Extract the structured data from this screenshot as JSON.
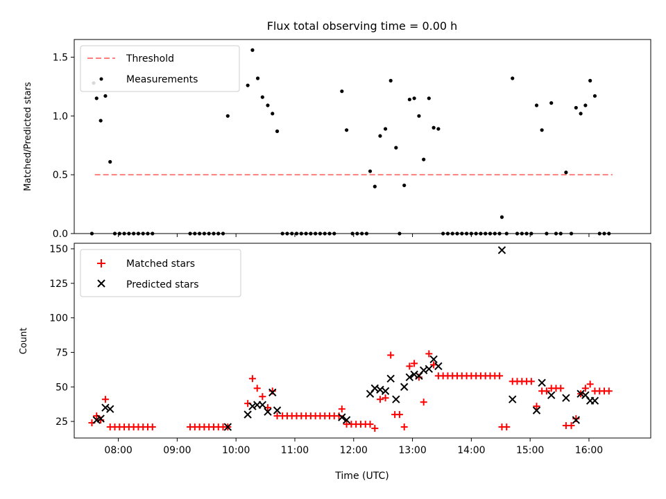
{
  "chart_data": [
    {
      "type": "scatter",
      "title": "Flux total observing time = 0.00 h",
      "xlabel": "",
      "ylabel": "Matched/Predicted stars",
      "xlim": [
        7.25,
        17.05
      ],
      "ylim": [
        0,
        1.65
      ],
      "yticks": [
        0.0,
        0.5,
        1.0,
        1.5
      ],
      "ytick_labels": [
        "0.0",
        "0.5",
        "1.0",
        "1.5"
      ],
      "xticks": [
        8,
        9,
        10,
        11,
        12,
        13,
        14,
        15,
        16
      ],
      "legend": [
        "Threshold",
        "Measurements"
      ],
      "legend_position": "top-left",
      "colors": {
        "threshold": "#ff7f7f",
        "measurements": "#000000"
      },
      "threshold": {
        "name": "Threshold",
        "x": [
          7.6,
          16.4
        ],
        "y": 0.5
      },
      "series": [
        {
          "name": "Measurements",
          "points": [
            [
              7.55,
              0.0
            ],
            [
              7.58,
              1.28
            ],
            [
              7.63,
              1.15
            ],
            [
              7.7,
              0.96
            ],
            [
              7.78,
              1.17
            ],
            [
              7.86,
              0.61
            ],
            [
              7.94,
              0.0
            ],
            [
              8.02,
              0.0
            ],
            [
              8.1,
              0.0
            ],
            [
              8.18,
              0.0
            ],
            [
              8.26,
              0.0
            ],
            [
              8.34,
              0.0
            ],
            [
              8.42,
              0.0
            ],
            [
              8.5,
              0.0
            ],
            [
              8.58,
              0.0
            ],
            [
              9.22,
              0.0
            ],
            [
              9.3,
              0.0
            ],
            [
              9.38,
              0.0
            ],
            [
              9.46,
              0.0
            ],
            [
              9.54,
              0.0
            ],
            [
              9.62,
              0.0
            ],
            [
              9.7,
              0.0
            ],
            [
              9.78,
              0.0
            ],
            [
              9.86,
              1.0
            ],
            [
              10.2,
              1.26
            ],
            [
              10.28,
              1.56
            ],
            [
              10.37,
              1.32
            ],
            [
              10.45,
              1.16
            ],
            [
              10.54,
              1.09
            ],
            [
              10.62,
              1.02
            ],
            [
              10.7,
              0.87
            ],
            [
              10.79,
              0.0
            ],
            [
              10.87,
              0.0
            ],
            [
              10.95,
              0.0
            ],
            [
              11.03,
              0.0
            ],
            [
              11.11,
              0.0
            ],
            [
              11.19,
              0.0
            ],
            [
              11.27,
              0.0
            ],
            [
              11.35,
              0.0
            ],
            [
              11.43,
              0.0
            ],
            [
              11.51,
              0.0
            ],
            [
              11.59,
              0.0
            ],
            [
              11.67,
              0.0
            ],
            [
              11.8,
              1.21
            ],
            [
              11.88,
              0.88
            ],
            [
              11.98,
              0.0
            ],
            [
              12.06,
              0.0
            ],
            [
              12.14,
              0.0
            ],
            [
              12.22,
              0.0
            ],
            [
              12.28,
              0.53
            ],
            [
              12.36,
              0.4
            ],
            [
              12.45,
              0.83
            ],
            [
              12.54,
              0.89
            ],
            [
              12.63,
              1.3
            ],
            [
              12.72,
              0.73
            ],
            [
              12.78,
              0.0
            ],
            [
              12.86,
              0.41
            ],
            [
              12.95,
              1.14
            ],
            [
              13.03,
              1.15
            ],
            [
              13.11,
              1.0
            ],
            [
              13.19,
              0.63
            ],
            [
              13.28,
              1.15
            ],
            [
              13.36,
              0.9
            ],
            [
              13.44,
              0.89
            ],
            [
              13.52,
              0.0
            ],
            [
              13.6,
              0.0
            ],
            [
              13.68,
              0.0
            ],
            [
              13.76,
              0.0
            ],
            [
              13.84,
              0.0
            ],
            [
              13.92,
              0.0
            ],
            [
              14.0,
              0.0
            ],
            [
              14.08,
              0.0
            ],
            [
              14.16,
              0.0
            ],
            [
              14.24,
              0.0
            ],
            [
              14.32,
              0.0
            ],
            [
              14.4,
              0.0
            ],
            [
              14.48,
              0.0
            ],
            [
              14.52,
              0.14
            ],
            [
              14.6,
              0.0
            ],
            [
              14.7,
              1.32
            ],
            [
              14.78,
              0.0
            ],
            [
              14.86,
              0.0
            ],
            [
              14.94,
              0.0
            ],
            [
              15.02,
              0.0
            ],
            [
              15.11,
              1.09
            ],
            [
              15.2,
              0.88
            ],
            [
              15.28,
              0.0
            ],
            [
              15.36,
              1.11
            ],
            [
              15.44,
              0.0
            ],
            [
              15.52,
              0.0
            ],
            [
              15.61,
              0.52
            ],
            [
              15.7,
              0.0
            ],
            [
              15.78,
              1.07
            ],
            [
              15.86,
              1.02
            ],
            [
              15.94,
              1.09
            ],
            [
              16.02,
              1.3
            ],
            [
              16.1,
              1.17
            ],
            [
              16.18,
              0.0
            ],
            [
              16.26,
              0.0
            ],
            [
              16.34,
              0.0
            ]
          ]
        }
      ]
    },
    {
      "type": "scatter",
      "title": "",
      "xlabel": "Time (UTC)",
      "ylabel": "Count",
      "xlim": [
        7.25,
        17.05
      ],
      "ylim": [
        13,
        154
      ],
      "yticks": [
        25,
        50,
        75,
        100,
        125,
        150
      ],
      "ytick_labels": [
        "25",
        "50",
        "75",
        "100",
        "125",
        "150"
      ],
      "xticks": [
        8,
        9,
        10,
        11,
        12,
        13,
        14,
        15,
        16
      ],
      "xtick_labels": [
        "08:00",
        "09:00",
        "10:00",
        "11:00",
        "12:00",
        "13:00",
        "14:00",
        "15:00",
        "16:00"
      ],
      "legend": [
        "Matched stars",
        "Predicted stars"
      ],
      "legend_position": "top-left",
      "colors": {
        "matched": "#ff0000",
        "predicted": "#000000"
      },
      "series": [
        {
          "name": "Matched stars",
          "marker": "plus",
          "points": [
            [
              7.55,
              24
            ],
            [
              7.63,
              29
            ],
            [
              7.7,
              26
            ],
            [
              7.78,
              41
            ],
            [
              7.86,
              21
            ],
            [
              7.94,
              21
            ],
            [
              8.02,
              21
            ],
            [
              8.1,
              21
            ],
            [
              8.18,
              21
            ],
            [
              8.26,
              21
            ],
            [
              8.34,
              21
            ],
            [
              8.42,
              21
            ],
            [
              8.5,
              21
            ],
            [
              8.58,
              21
            ],
            [
              9.22,
              21
            ],
            [
              9.3,
              21
            ],
            [
              9.38,
              21
            ],
            [
              9.46,
              21
            ],
            [
              9.54,
              21
            ],
            [
              9.62,
              21
            ],
            [
              9.7,
              21
            ],
            [
              9.78,
              21
            ],
            [
              9.86,
              21
            ],
            [
              10.2,
              38
            ],
            [
              10.28,
              56
            ],
            [
              10.36,
              49
            ],
            [
              10.45,
              43
            ],
            [
              10.54,
              35
            ],
            [
              10.62,
              47
            ],
            [
              10.7,
              29
            ],
            [
              10.79,
              29
            ],
            [
              10.87,
              29
            ],
            [
              10.95,
              29
            ],
            [
              11.03,
              29
            ],
            [
              11.11,
              29
            ],
            [
              11.19,
              29
            ],
            [
              11.27,
              29
            ],
            [
              11.35,
              29
            ],
            [
              11.43,
              29
            ],
            [
              11.51,
              29
            ],
            [
              11.59,
              29
            ],
            [
              11.67,
              29
            ],
            [
              11.75,
              29
            ],
            [
              11.8,
              34
            ],
            [
              11.88,
              23
            ],
            [
              11.96,
              23
            ],
            [
              12.04,
              23
            ],
            [
              12.12,
              23
            ],
            [
              12.2,
              23
            ],
            [
              12.28,
              23
            ],
            [
              12.36,
              20
            ],
            [
              12.45,
              41
            ],
            [
              12.54,
              42
            ],
            [
              12.63,
              73
            ],
            [
              12.7,
              30
            ],
            [
              12.78,
              30
            ],
            [
              12.86,
              21
            ],
            [
              12.95,
              65
            ],
            [
              13.03,
              67
            ],
            [
              13.11,
              57
            ],
            [
              13.19,
              39
            ],
            [
              13.28,
              74
            ],
            [
              13.36,
              66
            ],
            [
              13.44,
              58
            ],
            [
              13.52,
              58
            ],
            [
              13.6,
              58
            ],
            [
              13.68,
              58
            ],
            [
              13.76,
              58
            ],
            [
              13.84,
              58
            ],
            [
              13.92,
              58
            ],
            [
              14.0,
              58
            ],
            [
              14.08,
              58
            ],
            [
              14.16,
              58
            ],
            [
              14.24,
              58
            ],
            [
              14.32,
              58
            ],
            [
              14.4,
              58
            ],
            [
              14.48,
              58
            ],
            [
              14.52,
              21
            ],
            [
              14.6,
              21
            ],
            [
              14.7,
              54
            ],
            [
              14.78,
              54
            ],
            [
              14.86,
              54
            ],
            [
              14.94,
              54
            ],
            [
              15.02,
              54
            ],
            [
              15.11,
              36
            ],
            [
              15.2,
              47
            ],
            [
              15.28,
              47
            ],
            [
              15.36,
              49
            ],
            [
              15.44,
              49
            ],
            [
              15.52,
              49
            ],
            [
              15.61,
              22
            ],
            [
              15.7,
              22
            ],
            [
              15.78,
              27
            ],
            [
              15.86,
              45
            ],
            [
              15.94,
              49
            ],
            [
              16.02,
              52
            ],
            [
              16.1,
              47
            ],
            [
              16.18,
              47
            ],
            [
              16.26,
              47
            ],
            [
              16.34,
              47
            ]
          ]
        },
        {
          "name": "Predicted stars",
          "marker": "x",
          "points": [
            [
              7.63,
              26
            ],
            [
              7.7,
              27
            ],
            [
              7.78,
              35
            ],
            [
              7.86,
              34
            ],
            [
              9.86,
              21
            ],
            [
              10.2,
              30
            ],
            [
              10.28,
              36
            ],
            [
              10.36,
              37
            ],
            [
              10.45,
              37
            ],
            [
              10.54,
              32
            ],
            [
              10.62,
              46
            ],
            [
              10.7,
              33
            ],
            [
              11.8,
              28
            ],
            [
              11.88,
              26
            ],
            [
              12.28,
              45
            ],
            [
              12.36,
              49
            ],
            [
              12.45,
              48
            ],
            [
              12.54,
              47
            ],
            [
              12.63,
              56
            ],
            [
              12.72,
              41
            ],
            [
              12.86,
              50
            ],
            [
              12.95,
              57
            ],
            [
              13.03,
              59
            ],
            [
              13.11,
              58
            ],
            [
              13.19,
              62
            ],
            [
              13.28,
              63
            ],
            [
              13.36,
              70
            ],
            [
              13.44,
              65
            ],
            [
              14.52,
              149
            ],
            [
              14.7,
              41
            ],
            [
              15.11,
              33
            ],
            [
              15.2,
              53
            ],
            [
              15.36,
              44
            ],
            [
              15.61,
              42
            ],
            [
              15.78,
              26
            ],
            [
              15.86,
              45
            ],
            [
              15.94,
              44
            ],
            [
              16.02,
              40
            ],
            [
              16.1,
              40
            ]
          ]
        }
      ]
    }
  ]
}
